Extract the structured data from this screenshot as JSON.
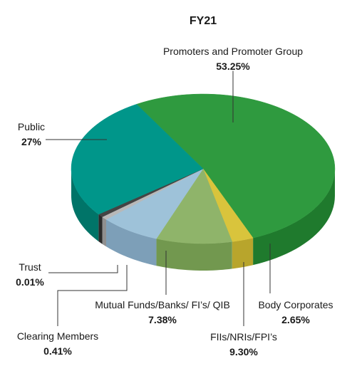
{
  "chart_data": {
    "type": "pie",
    "title": "FY21",
    "slices": [
      {
        "label": "Promoters and Promoter Group",
        "value": 53.25,
        "value_label": "53.25%",
        "color": "#2f9a3f",
        "side_color": "#1f7a2d"
      },
      {
        "label": "Body Corporates",
        "value": 2.65,
        "value_label": "2.65%",
        "color": "#d9c43c",
        "side_color": "#b8a52c"
      },
      {
        "label": "FIIs/NRIs/FPI’s",
        "value": 9.3,
        "value_label": "9.30%",
        "color": "#8fb46a",
        "side_color": "#72984f"
      },
      {
        "label": "Mutual Funds/Banks/ FI’s/ QIB",
        "value": 7.38,
        "value_label": "7.38%",
        "color": "#9ec2d9",
        "side_color": "#7d9fb8"
      },
      {
        "label": "Clearing Members",
        "value": 0.41,
        "value_label": "0.41%",
        "color": "#b8b8b8",
        "side_color": "#8f8f8f"
      },
      {
        "label": "Trust",
        "value": 0.01,
        "value_label": "0.01%",
        "color": "#444444",
        "side_color": "#2a2a2a"
      },
      {
        "label": "Public",
        "value": 27,
        "value_label": "27%",
        "color": "#00968a",
        "side_color": "#007468"
      }
    ]
  }
}
